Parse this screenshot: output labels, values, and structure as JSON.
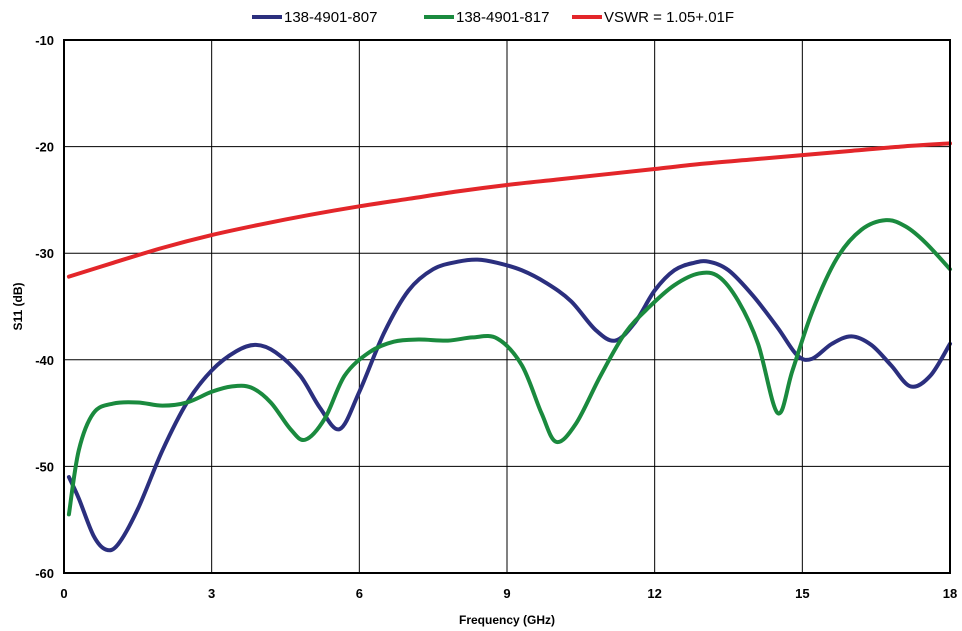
{
  "chart_data": {
    "type": "line",
    "title": "",
    "xlabel": "Frequency (GHz)",
    "ylabel": "S11 (dB)",
    "xlim": [
      0,
      18
    ],
    "ylim": [
      -60,
      -10
    ],
    "xticks": [
      0,
      3,
      6,
      9,
      12,
      15,
      18
    ],
    "yticks": [
      -10,
      -20,
      -30,
      -40,
      -50,
      -60
    ],
    "xtick_labels": [
      "0",
      "3",
      "6",
      "9",
      "12",
      "15",
      "18"
    ],
    "ytick_labels": [
      "-10",
      "-20",
      "-30",
      "-40",
      "-50",
      "-60"
    ],
    "grid": true,
    "legend_position": "top",
    "series": [
      {
        "name": "138-4901-807",
        "color": "#2b2f7e",
        "x": [
          0.1,
          0.3,
          0.6,
          0.85,
          1.1,
          1.5,
          2.0,
          2.5,
          3.0,
          3.5,
          3.9,
          4.3,
          4.8,
          5.2,
          5.6,
          6.0,
          6.5,
          7.0,
          7.5,
          8.0,
          8.4,
          8.8,
          9.3,
          9.8,
          10.3,
          10.8,
          11.2,
          11.6,
          12.0,
          12.4,
          12.8,
          13.1,
          13.5,
          14.0,
          14.5,
          14.9,
          15.2,
          15.6,
          16.0,
          16.4,
          16.8,
          17.2,
          17.6,
          18.0
        ],
        "y": [
          -51,
          -53,
          -56.5,
          -57.8,
          -57.3,
          -54,
          -48.5,
          -44,
          -41,
          -39.2,
          -38.6,
          -39.3,
          -41.5,
          -44.5,
          -46.5,
          -43,
          -37.5,
          -33.5,
          -31.5,
          -30.8,
          -30.6,
          -30.9,
          -31.6,
          -32.8,
          -34.5,
          -37.2,
          -38.2,
          -36.5,
          -33.5,
          -31.6,
          -30.9,
          -30.8,
          -31.6,
          -34,
          -37,
          -39.6,
          -39.9,
          -38.5,
          -37.8,
          -38.6,
          -40.5,
          -42.5,
          -41.5,
          -38.5
        ]
      },
      {
        "name": "138-4901-817",
        "color": "#1a8a3e",
        "x": [
          0.1,
          0.3,
          0.6,
          1.0,
          1.5,
          2.0,
          2.5,
          3.0,
          3.4,
          3.8,
          4.2,
          4.6,
          4.9,
          5.3,
          5.7,
          6.2,
          6.7,
          7.2,
          7.8,
          8.3,
          8.8,
          9.3,
          9.7,
          10.0,
          10.4,
          10.9,
          11.4,
          11.9,
          12.4,
          12.9,
          13.3,
          13.7,
          14.1,
          14.5,
          14.8,
          15.2,
          15.7,
          16.2,
          16.7,
          17.1,
          17.5,
          18.0
        ],
        "y": [
          -54.5,
          -48.5,
          -45,
          -44.1,
          -44,
          -44.3,
          -44,
          -43,
          -42.5,
          -42.6,
          -44,
          -46.5,
          -47.5,
          -45.5,
          -41.5,
          -39.3,
          -38.3,
          -38.1,
          -38.2,
          -37.9,
          -38,
          -40.5,
          -45,
          -47.7,
          -46,
          -41.5,
          -37.5,
          -35,
          -33,
          -31.9,
          -32.2,
          -34.5,
          -38.5,
          -45,
          -41,
          -35.5,
          -30.5,
          -27.8,
          -26.9,
          -27.5,
          -29,
          -31.5
        ]
      },
      {
        "name": "VSWR = 1.05+.01F",
        "color": "#e3262a",
        "x": [
          0.1,
          1,
          2,
          3,
          4,
          5,
          6,
          7,
          8,
          9,
          10,
          11,
          12,
          13,
          14,
          15,
          16,
          17,
          18
        ],
        "y": [
          -32.2,
          -30.9,
          -29.5,
          -28.3,
          -27.3,
          -26.4,
          -25.6,
          -24.9,
          -24.2,
          -23.6,
          -23.1,
          -22.6,
          -22.1,
          -21.6,
          -21.2,
          -20.8,
          -20.4,
          -20.0,
          -19.7
        ]
      }
    ]
  }
}
